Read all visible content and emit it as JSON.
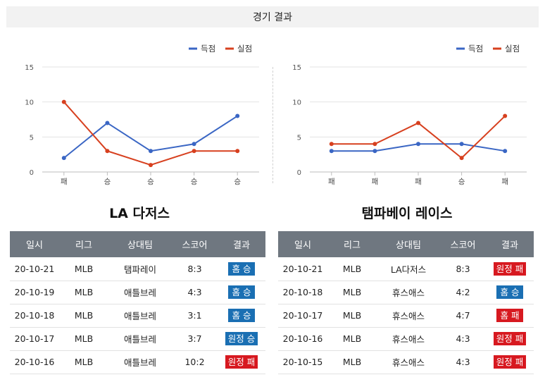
{
  "header": {
    "title": "경기 결과"
  },
  "legend": {
    "scored": "득점",
    "conceded": "실점"
  },
  "colors": {
    "scored": "#3a66c4",
    "conceded": "#d7401f",
    "win": "#1a6fb3",
    "loss": "#d71920"
  },
  "chart_data": [
    {
      "type": "line",
      "categories": [
        "패",
        "승",
        "승",
        "승",
        "승"
      ],
      "ylim": [
        0,
        15
      ],
      "yticks": [
        0,
        5,
        10,
        15
      ],
      "legend": "top-right",
      "grid": true,
      "series": [
        {
          "name": "득점",
          "values": [
            2,
            7,
            3,
            4,
            8
          ]
        },
        {
          "name": "실점",
          "values": [
            10,
            3,
            1,
            3,
            3
          ]
        }
      ]
    },
    {
      "type": "line",
      "categories": [
        "패",
        "패",
        "패",
        "승",
        "패"
      ],
      "ylim": [
        0,
        15
      ],
      "yticks": [
        0,
        5,
        10,
        15
      ],
      "legend": "top-right",
      "grid": true,
      "series": [
        {
          "name": "득점",
          "values": [
            3,
            3,
            4,
            4,
            3
          ]
        },
        {
          "name": "실점",
          "values": [
            4,
            4,
            7,
            2,
            8
          ]
        }
      ]
    }
  ],
  "teams": {
    "left": {
      "name": "LA 다저스"
    },
    "right": {
      "name": "탬파베이 레이스"
    }
  },
  "table_headers": [
    "일시",
    "리그",
    "상대팀",
    "스코어",
    "결과"
  ],
  "left_games": [
    {
      "date": "20-10-21",
      "league": "MLB",
      "opponent": "탬파레이",
      "score": "8:3",
      "result": "홈 승",
      "win": true
    },
    {
      "date": "20-10-19",
      "league": "MLB",
      "opponent": "애틀브레",
      "score": "4:3",
      "result": "홈 승",
      "win": true
    },
    {
      "date": "20-10-18",
      "league": "MLB",
      "opponent": "애틀브레",
      "score": "3:1",
      "result": "홈 승",
      "win": true
    },
    {
      "date": "20-10-17",
      "league": "MLB",
      "opponent": "애틀브레",
      "score": "3:7",
      "result": "원정 승",
      "win": true
    },
    {
      "date": "20-10-16",
      "league": "MLB",
      "opponent": "애틀브레",
      "score": "10:2",
      "result": "원정 패",
      "win": false
    }
  ],
  "right_games": [
    {
      "date": "20-10-21",
      "league": "MLB",
      "opponent": "LA다저스",
      "score": "8:3",
      "result": "원정 패",
      "win": false
    },
    {
      "date": "20-10-18",
      "league": "MLB",
      "opponent": "휴스애스",
      "score": "4:2",
      "result": "홈 승",
      "win": true
    },
    {
      "date": "20-10-17",
      "league": "MLB",
      "opponent": "휴스애스",
      "score": "4:7",
      "result": "홈 패",
      "win": false
    },
    {
      "date": "20-10-16",
      "league": "MLB",
      "opponent": "휴스애스",
      "score": "4:3",
      "result": "원정 패",
      "win": false
    },
    {
      "date": "20-10-15",
      "league": "MLB",
      "opponent": "휴스애스",
      "score": "4:3",
      "result": "원정 패",
      "win": false
    }
  ]
}
